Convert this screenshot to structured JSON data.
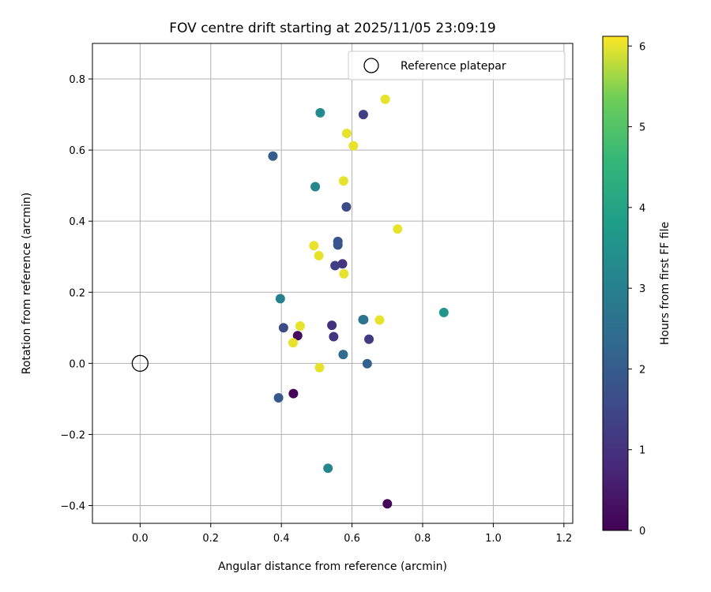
{
  "chart_data": {
    "type": "scatter",
    "title": "FOV centre drift starting at 2025/11/05 23:09:19",
    "xlabel": "Angular distance from reference (arcmin)",
    "ylabel": "Rotation from reference (arcmin)",
    "xlim": [
      -0.135,
      1.225
    ],
    "ylim": [
      -0.45,
      0.9
    ],
    "xticks": [
      0.0,
      0.2,
      0.4,
      0.6,
      0.8,
      1.0,
      1.2
    ],
    "xtick_labels": [
      "0.0",
      "0.2",
      "0.4",
      "0.6",
      "0.8",
      "1.0",
      "1.2"
    ],
    "yticks": [
      -0.4,
      -0.2,
      0.0,
      0.2,
      0.4,
      0.6,
      0.8
    ],
    "ytick_labels": [
      "−0.4",
      "−0.2",
      "0.0",
      "0.2",
      "0.4",
      "0.6",
      "0.8"
    ],
    "grid": true,
    "legend": {
      "position": "top-right",
      "label": "Reference platepar"
    },
    "reference_point": {
      "x": 0.0,
      "y": 0.0
    },
    "colorbar": {
      "label": "Hours from first FF file",
      "range": [
        0,
        6.12
      ],
      "ticks": [
        0,
        1,
        2,
        3,
        4,
        5,
        6
      ],
      "tick_labels": [
        "0",
        "1",
        "2",
        "3",
        "4",
        "5",
        "6"
      ],
      "colormap": "viridis"
    },
    "points": [
      {
        "x": 0.7,
        "y": -0.395,
        "hours": 0.1
      },
      {
        "x": 0.434,
        "y": -0.085,
        "hours": 0.1
      },
      {
        "x": 0.446,
        "y": 0.078,
        "hours": 0.2
      },
      {
        "x": 0.548,
        "y": 0.075,
        "hours": 1.1
      },
      {
        "x": 0.543,
        "y": 0.107,
        "hours": 1.0
      },
      {
        "x": 0.648,
        "y": 0.068,
        "hours": 1.2
      },
      {
        "x": 0.632,
        "y": 0.7,
        "hours": 1.3
      },
      {
        "x": 0.573,
        "y": 0.28,
        "hours": 1.1
      },
      {
        "x": 0.552,
        "y": 0.275,
        "hours": 1.3
      },
      {
        "x": 0.406,
        "y": 0.1,
        "hours": 1.6
      },
      {
        "x": 0.392,
        "y": -0.097,
        "hours": 1.9
      },
      {
        "x": 0.376,
        "y": 0.583,
        "hours": 2.0
      },
      {
        "x": 0.584,
        "y": 0.44,
        "hours": 1.6
      },
      {
        "x": 0.56,
        "y": 0.343,
        "hours": 1.8
      },
      {
        "x": 0.56,
        "y": 0.333,
        "hours": 1.8
      },
      {
        "x": 0.643,
        "y": -0.001,
        "hours": 2.1
      },
      {
        "x": 0.575,
        "y": 0.025,
        "hours": 2.4
      },
      {
        "x": 0.633,
        "y": 0.123,
        "hours": 2.6
      },
      {
        "x": 0.631,
        "y": 0.123,
        "hours": 2.7
      },
      {
        "x": 0.397,
        "y": 0.182,
        "hours": 3.0
      },
      {
        "x": 0.496,
        "y": 0.497,
        "hours": 3.2
      },
      {
        "x": 0.51,
        "y": 0.705,
        "hours": 3.3
      },
      {
        "x": 0.532,
        "y": -0.295,
        "hours": 3.2
      },
      {
        "x": 0.86,
        "y": 0.143,
        "hours": 3.6
      },
      {
        "x": 0.694,
        "y": 0.743,
        "hours": 6.0
      },
      {
        "x": 0.585,
        "y": 0.647,
        "hours": 6.0
      },
      {
        "x": 0.604,
        "y": 0.612,
        "hours": 6.0
      },
      {
        "x": 0.576,
        "y": 0.513,
        "hours": 6.0
      },
      {
        "x": 0.729,
        "y": 0.378,
        "hours": 6.0
      },
      {
        "x": 0.492,
        "y": 0.331,
        "hours": 6.0
      },
      {
        "x": 0.506,
        "y": 0.303,
        "hours": 6.0
      },
      {
        "x": 0.577,
        "y": 0.252,
        "hours": 6.0
      },
      {
        "x": 0.453,
        "y": 0.105,
        "hours": 6.0
      },
      {
        "x": 0.433,
        "y": 0.058,
        "hours": 6.0
      },
      {
        "x": 0.508,
        "y": -0.012,
        "hours": 6.0
      },
      {
        "x": 0.678,
        "y": 0.122,
        "hours": 6.0
      }
    ]
  }
}
